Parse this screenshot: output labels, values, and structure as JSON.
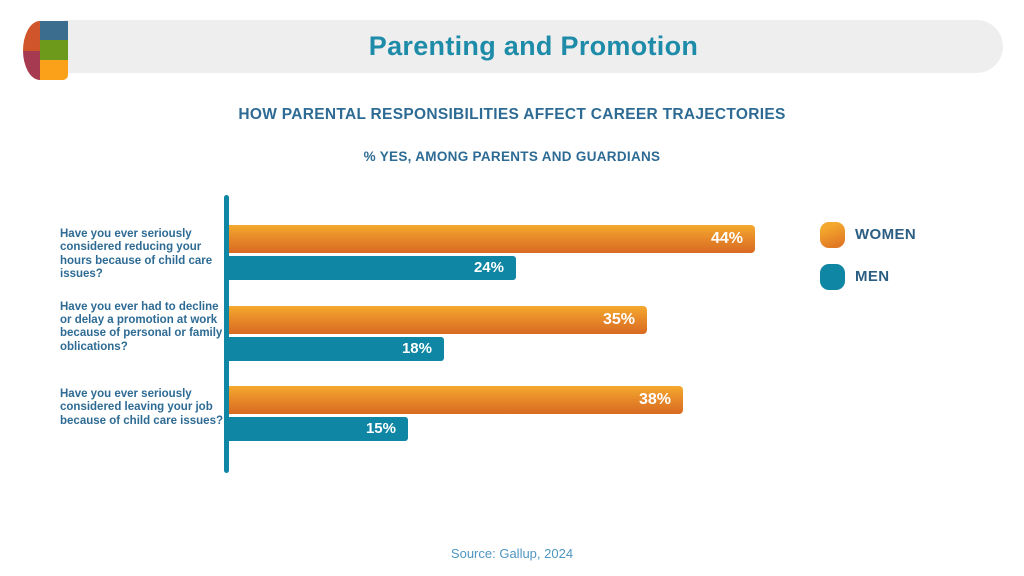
{
  "header": {
    "title": "Parenting and Promotion"
  },
  "chart_heading": {
    "title": "HOW PARENTAL RESPONSIBILITIES AFFECT CAREER TRAJECTORIES",
    "subtitle": "% YES, AMONG PARENTS AND GUARDIANS"
  },
  "chart_data": {
    "type": "bar",
    "orientation": "horizontal",
    "title": "HOW PARENTAL RESPONSIBILITIES AFFECT CAREER TRAJECTORIES",
    "subtitle": "% YES, AMONG PARENTS AND GUARDIANS",
    "categories": [
      "Have you ever seriously considered reducing your hours because of child care issues?",
      "Have you ever had to decline or delay a promotion at work because of personal or family oblications?",
      "Have you ever seriously considered leaving your job because of child care issues?"
    ],
    "series": [
      {
        "name": "WOMEN",
        "color": "#f0a02c",
        "values": [
          44,
          35,
          38
        ]
      },
      {
        "name": "MEN",
        "color": "#0f86a3",
        "values": [
          24,
          18,
          15
        ]
      }
    ],
    "value_suffix": "%",
    "xlim": [
      0,
      50
    ],
    "grid": false,
    "legend_position": "right",
    "value_labels": "inside-end"
  },
  "legend": {
    "items": [
      {
        "label": "WOMEN",
        "color": "#f0a02c"
      },
      {
        "label": "MEN",
        "color": "#0f86a3"
      }
    ]
  },
  "source": "Source: Gallup, 2024",
  "colors": {
    "title_teal": "#1e8ca9",
    "heading_blue": "#2e6b94",
    "legend_text": "#2b5e82",
    "source_blue": "#4e96c1",
    "bar_orange_top": "#f4a92e",
    "bar_orange_bottom": "#d96a22",
    "bar_teal": "#0f86a3",
    "header_band": "#eeeeee",
    "logo_disc_top": "#d0552a",
    "logo_disc_bottom": "#a63a51",
    "logo_square_blue": "#3a6d8e",
    "logo_square_green": "#6e9a1b",
    "logo_square_orange": "#fba019"
  }
}
